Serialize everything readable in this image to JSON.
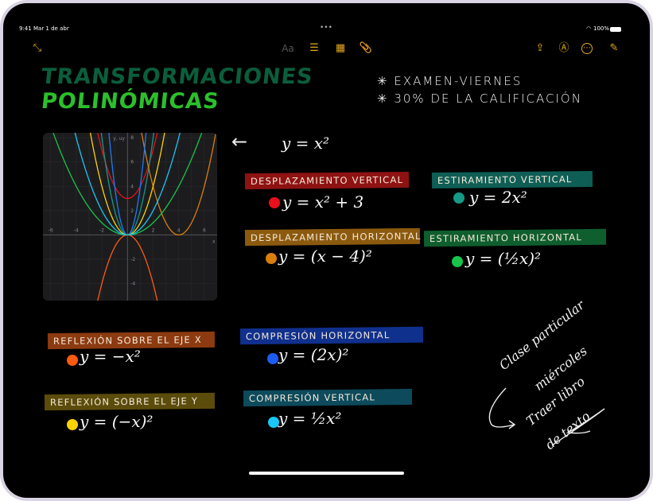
{
  "status_bar": {
    "time": "9:41",
    "date": "Mar 1 de abr",
    "multitask": "•••",
    "battery": "100%"
  },
  "toolbar": {
    "left": [
      {
        "icon": "collapse-icon",
        "glyph": "⤡"
      }
    ],
    "center": [
      {
        "icon": "text-format-icon",
        "glyph": "Aa"
      },
      {
        "icon": "checklist-icon",
        "glyph": "☰"
      },
      {
        "icon": "table-icon",
        "glyph": "▦"
      },
      {
        "icon": "paperclip-icon",
        "glyph": "📎"
      }
    ],
    "right": [
      {
        "icon": "share-icon",
        "glyph": "⇪"
      },
      {
        "icon": "markup-icon",
        "glyph": "Ⓐ"
      },
      {
        "icon": "more-icon",
        "glyph": "⋯"
      },
      {
        "icon": "compose-icon",
        "glyph": "✎"
      }
    ],
    "accent": "#e2a920"
  },
  "note": {
    "title_line1": "TRANSFORMACIONES",
    "title_line1_color": "#0b5e3c",
    "title_line2": "POLINÓMICAS",
    "title_line2_color": "#2bc02b",
    "reminders": [
      "✳ EXAMEN-VIERNES",
      "✳ 30% DE LA CALIFICACIÓN"
    ],
    "base_function": "y = x²",
    "base_arrow": "←",
    "transformations": [
      {
        "label": "DESPLAZAMIENTO VERTICAL",
        "equation": "y = x² + 3",
        "highlight": "#8e1212",
        "dot": "#e8101a"
      },
      {
        "label": "ESTIRAMIENTO VERTICAL",
        "equation": "y = 2x²",
        "highlight": "#0e5e55",
        "dot": "#149a86"
      },
      {
        "label": "DESPLAZAMIENTO HORIZONTAL",
        "equation": "y = (x − 4)²",
        "highlight": "#8c5a0e",
        "dot": "#d97e0a"
      },
      {
        "label": "ESTIRAMIENTO HORIZONTAL",
        "equation": "y = (½x)²",
        "highlight": "#0f5e2e",
        "dot": "#18c44c"
      },
      {
        "label": "REFLEXIÓN SOBRE EL EJE X",
        "equation": "y = −x²",
        "highlight": "#8c3a10",
        "dot": "#ff5a10"
      },
      {
        "label": "COMPRESIÓN HORIZONTAL",
        "equation": "y = (2x)²",
        "highlight": "#10308e",
        "dot": "#1d5cf0"
      },
      {
        "label": "REFLEXIÓN SOBRE EL EJE Y",
        "equation": "y = (−x)²",
        "highlight": "#5c4c0c",
        "dot": "#ffd200"
      },
      {
        "label": "COMPRESIÓN VERTICAL",
        "equation": "y = ½x²",
        "highlight": "#0d4a5c",
        "dot": "#19c6f5"
      }
    ],
    "side_note": {
      "line1": "Clase particular",
      "line2": "miércoles",
      "line3": "Traer libro",
      "line4": "de texto"
    }
  },
  "chart_data": {
    "type": "line",
    "xlabel": "x",
    "ylabel": "y, uy",
    "xlim": [
      -6.6,
      7.0
    ],
    "ylim": [
      -5.4,
      8.4
    ],
    "xticks": [
      -6,
      -4,
      -2,
      2,
      4,
      6
    ],
    "yticks": [
      -4,
      -2,
      2,
      4,
      6,
      8
    ],
    "grid": true,
    "series": [
      {
        "color": "#e8101a",
        "a": 1,
        "b": 1,
        "h": 0,
        "k": 3
      },
      {
        "color": "#149a86",
        "a": 2,
        "b": 1,
        "h": 0,
        "k": 0
      },
      {
        "color": "#d97e0a",
        "a": 1,
        "b": 1,
        "h": 4,
        "k": 0
      },
      {
        "color": "#18c44c",
        "a": 1,
        "b": 0.5,
        "h": 0,
        "k": 0
      },
      {
        "color": "#ff5a10",
        "a": -1,
        "b": 1,
        "h": 0,
        "k": 0
      },
      {
        "color": "#1d7cf5",
        "a": 1,
        "b": 2,
        "h": 0,
        "k": 0
      },
      {
        "color": "#ffd200",
        "a": 1,
        "b": -1,
        "h": 0,
        "k": 0
      },
      {
        "color": "#19c6f5",
        "a": 0.5,
        "b": 1,
        "h": 0,
        "k": 0
      }
    ]
  }
}
